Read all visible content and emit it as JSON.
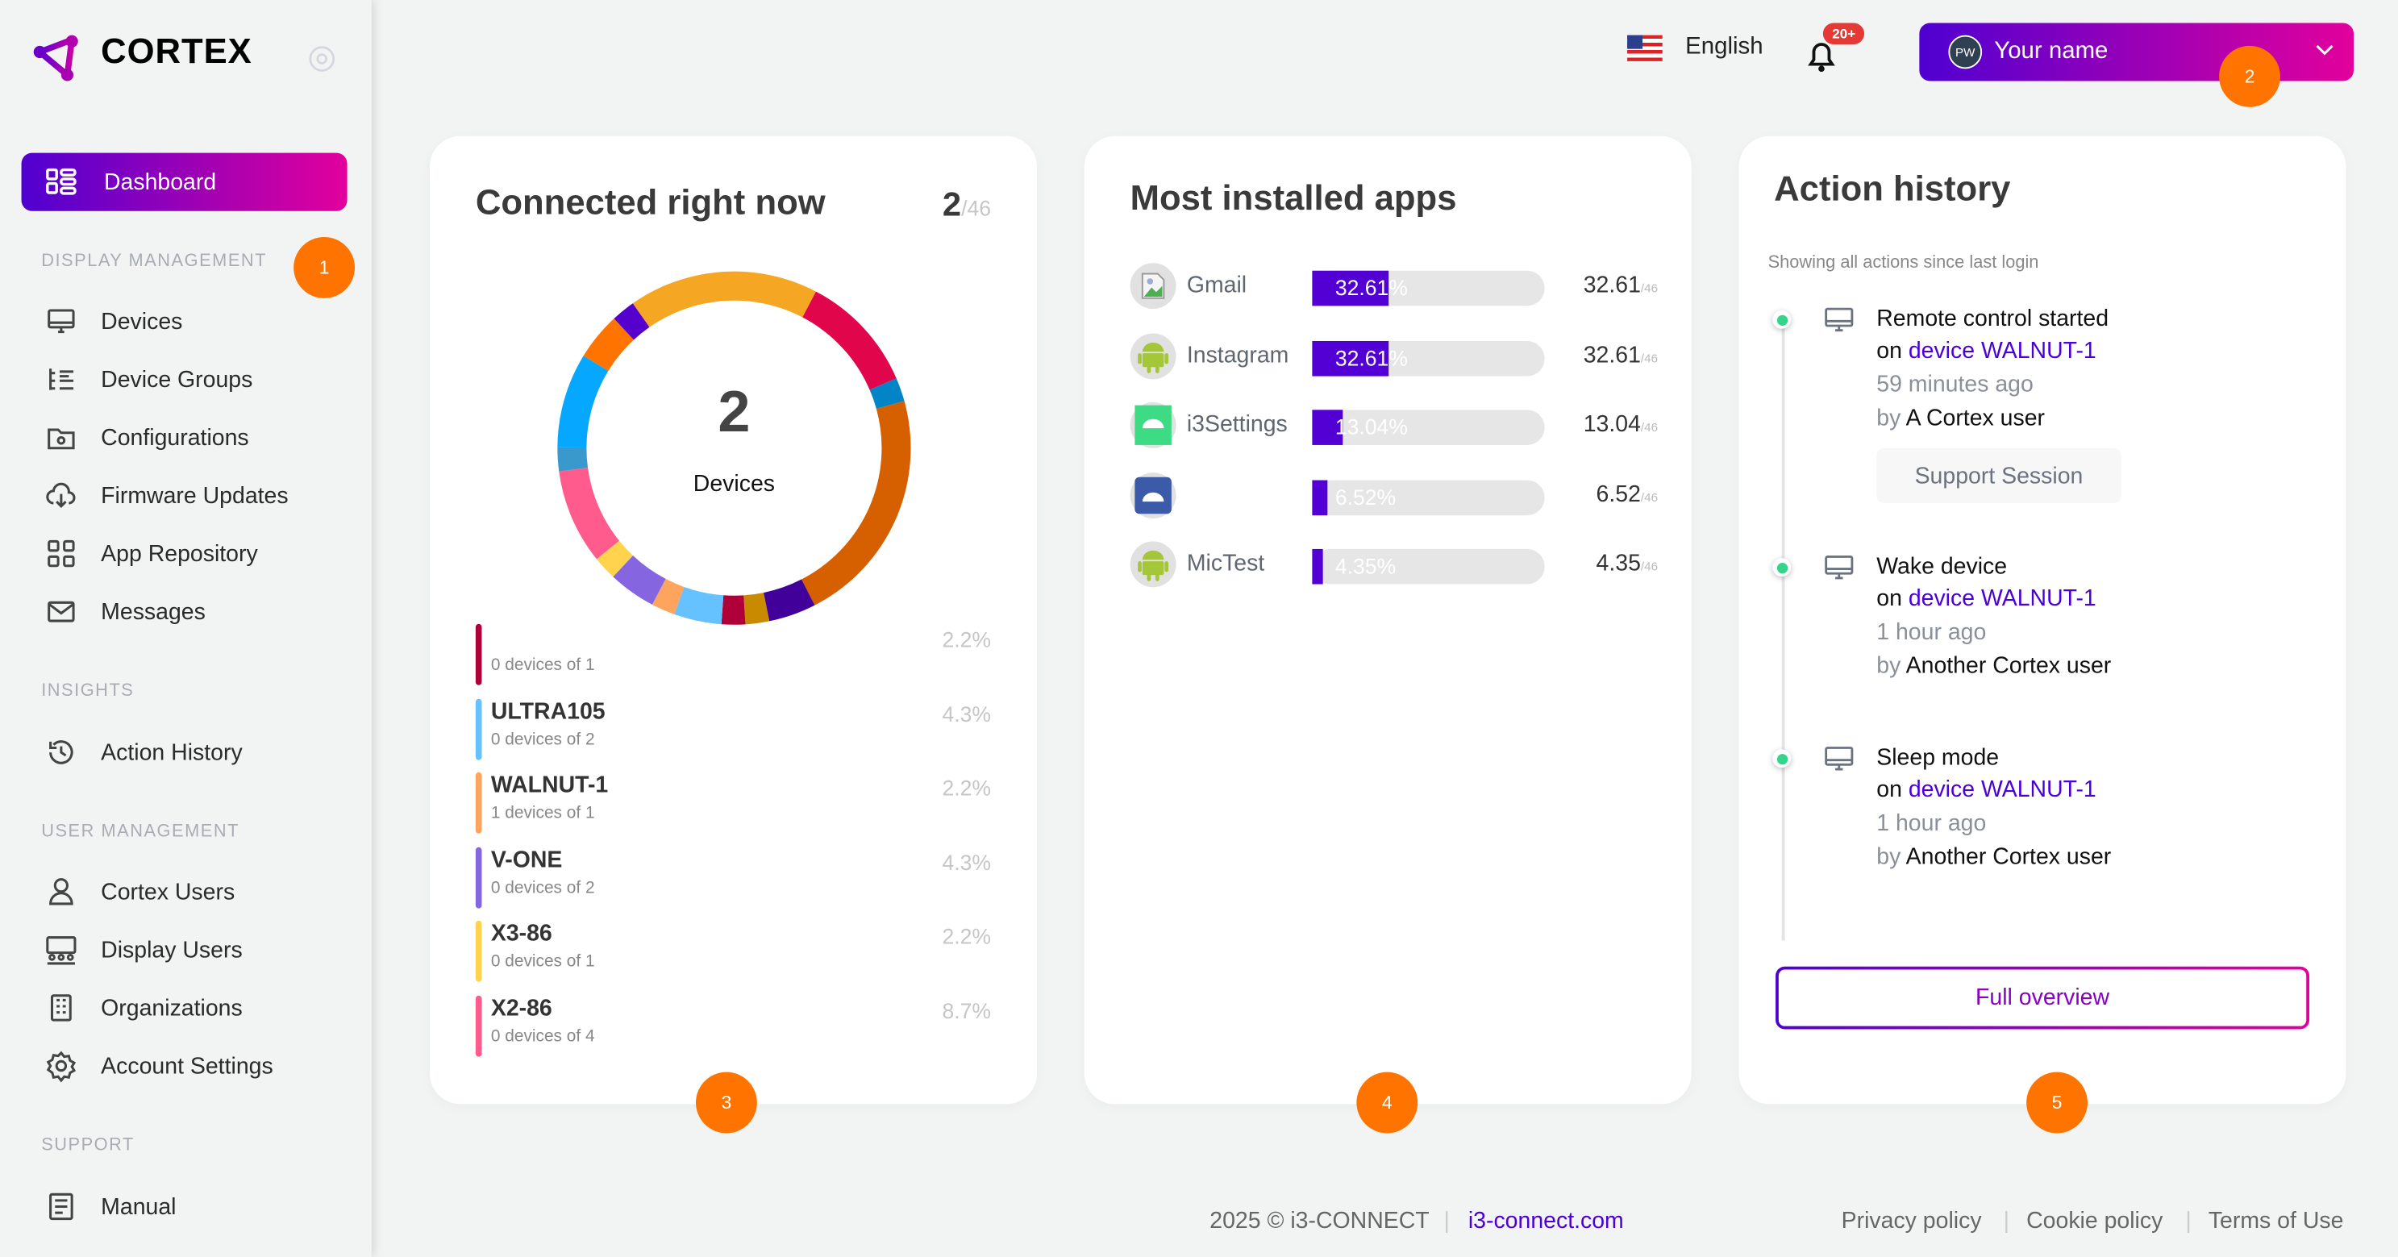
{
  "brand": {
    "name": "CORTEX",
    "logo_gradient": [
      "#5a00d0",
      "#c400a8"
    ]
  },
  "sidebar": {
    "active": {
      "label": "Dashboard",
      "icon": "dashboard-icon"
    },
    "sections": [
      {
        "title": "DISPLAY MANAGEMENT",
        "items": [
          {
            "label": "Devices",
            "icon": "monitor-icon"
          },
          {
            "label": "Device Groups",
            "icon": "list-tree-icon"
          },
          {
            "label": "Configurations",
            "icon": "folder-settings-icon"
          },
          {
            "label": "Firmware Updates",
            "icon": "cloud-download-icon"
          },
          {
            "label": "App Repository",
            "icon": "grid-icon"
          },
          {
            "label": "Messages",
            "icon": "mail-icon"
          }
        ]
      },
      {
        "title": "INSIGHTS",
        "items": [
          {
            "label": "Action History",
            "icon": "history-icon"
          }
        ]
      },
      {
        "title": "USER MANAGEMENT",
        "items": [
          {
            "label": "Cortex Users",
            "icon": "user-icon"
          },
          {
            "label": "Display Users",
            "icon": "users-screen-icon"
          },
          {
            "label": "Organizations",
            "icon": "building-icon"
          },
          {
            "label": "Account Settings",
            "icon": "gear-icon"
          }
        ]
      },
      {
        "title": "SUPPORT",
        "items": [
          {
            "label": "Manual",
            "icon": "book-icon"
          }
        ]
      }
    ]
  },
  "markers": [
    "1",
    "2",
    "3",
    "4",
    "5"
  ],
  "header": {
    "language": "English",
    "notifications_badge": "20+",
    "user": {
      "initials": "PW",
      "name": "Your name"
    }
  },
  "connected": {
    "title": "Connected right now",
    "count": "2",
    "total": "/46",
    "center_value": "2",
    "center_label": "Devices",
    "segments": [
      {
        "color": "#f5a623",
        "count": 8
      },
      {
        "color": "#e1064b",
        "count": 5
      },
      {
        "color": "#0284c7",
        "count": 1
      },
      {
        "color": "#d65f00",
        "count": 10
      },
      {
        "color": "#400099",
        "count": 2
      },
      {
        "color": "#c98a00",
        "count": 1
      },
      {
        "color": "#b0003a",
        "count": 1
      },
      {
        "color": "#66c2ff",
        "count": 2
      },
      {
        "color": "#ffa45e",
        "count": 1
      },
      {
        "color": "#8566e0",
        "count": 2
      },
      {
        "color": "#ffd34d",
        "count": 1
      },
      {
        "color": "#ff5c8d",
        "count": 4
      },
      {
        "color": "#3a99cc",
        "count": 1
      },
      {
        "color": "#06a8ff",
        "count": 4
      },
      {
        "color": "#ff7300",
        "count": 2
      },
      {
        "color": "#5500cc",
        "count": 1
      }
    ],
    "legend": [
      {
        "name": "",
        "sub": "0 devices of 1",
        "pct": "2.2%",
        "color": "#b0003a"
      },
      {
        "name": "ULTRA105",
        "sub": "0 devices of 2",
        "pct": "4.3%",
        "color": "#66c2ff"
      },
      {
        "name": "WALNUT-1",
        "sub": "1 devices of 1",
        "pct": "2.2%",
        "color": "#ffa45e"
      },
      {
        "name": "V-ONE",
        "sub": "0 devices of 2",
        "pct": "4.3%",
        "color": "#8566e0"
      },
      {
        "name": "X3-86",
        "sub": "0 devices of 1",
        "pct": "2.2%",
        "color": "#ffd34d"
      },
      {
        "name": "X2-86",
        "sub": "0 devices of 4",
        "pct": "8.7%",
        "color": "#ff5c8d"
      }
    ]
  },
  "apps": {
    "title": "Most installed apps",
    "items": [
      {
        "name": "Gmail",
        "icon": "broken-image-icon",
        "percent": 32.61,
        "pct_label": "32.61%",
        "value": "32.61",
        "of": "/46"
      },
      {
        "name": "Instagram",
        "icon": "android-icon",
        "percent": 32.61,
        "pct_label": "32.61%",
        "value": "32.61",
        "of": "/46"
      },
      {
        "name": "i3Settings",
        "icon": "android-settings-icon",
        "percent": 13.04,
        "pct_label": "13.04%",
        "value": "13.04",
        "of": "/46"
      },
      {
        "name": "",
        "icon": "android-grid-icon",
        "percent": 6.52,
        "pct_label": "6.52%",
        "value": "6.52",
        "of": "/46"
      },
      {
        "name": "MicTest",
        "icon": "android-icon",
        "percent": 4.35,
        "pct_label": "4.35%",
        "value": "4.35",
        "of": "/46"
      }
    ]
  },
  "history": {
    "title": "Action history",
    "subtitle": "Showing all actions since last login",
    "entries": [
      {
        "action": "Remote control started",
        "on": "on",
        "device": "device WALNUT-1",
        "time": "59 minutes ago",
        "by": "by",
        "user": "A Cortex user",
        "tag": "Support Session"
      },
      {
        "action": "Wake device",
        "on": "on",
        "device": "device WALNUT-1",
        "time": "1 hour ago",
        "by": "by",
        "user": "Another Cortex user"
      },
      {
        "action": "Sleep mode",
        "on": "on",
        "device": "device WALNUT-1",
        "time": "1 hour ago",
        "by": "by",
        "user": "Another Cortex user"
      }
    ],
    "button": "Full overview"
  },
  "footer": {
    "copyright": "2025 © i3-CONNECT",
    "site": "i3-connect.com",
    "links": [
      "Privacy policy",
      "Cookie policy",
      "Terms of Use"
    ]
  }
}
